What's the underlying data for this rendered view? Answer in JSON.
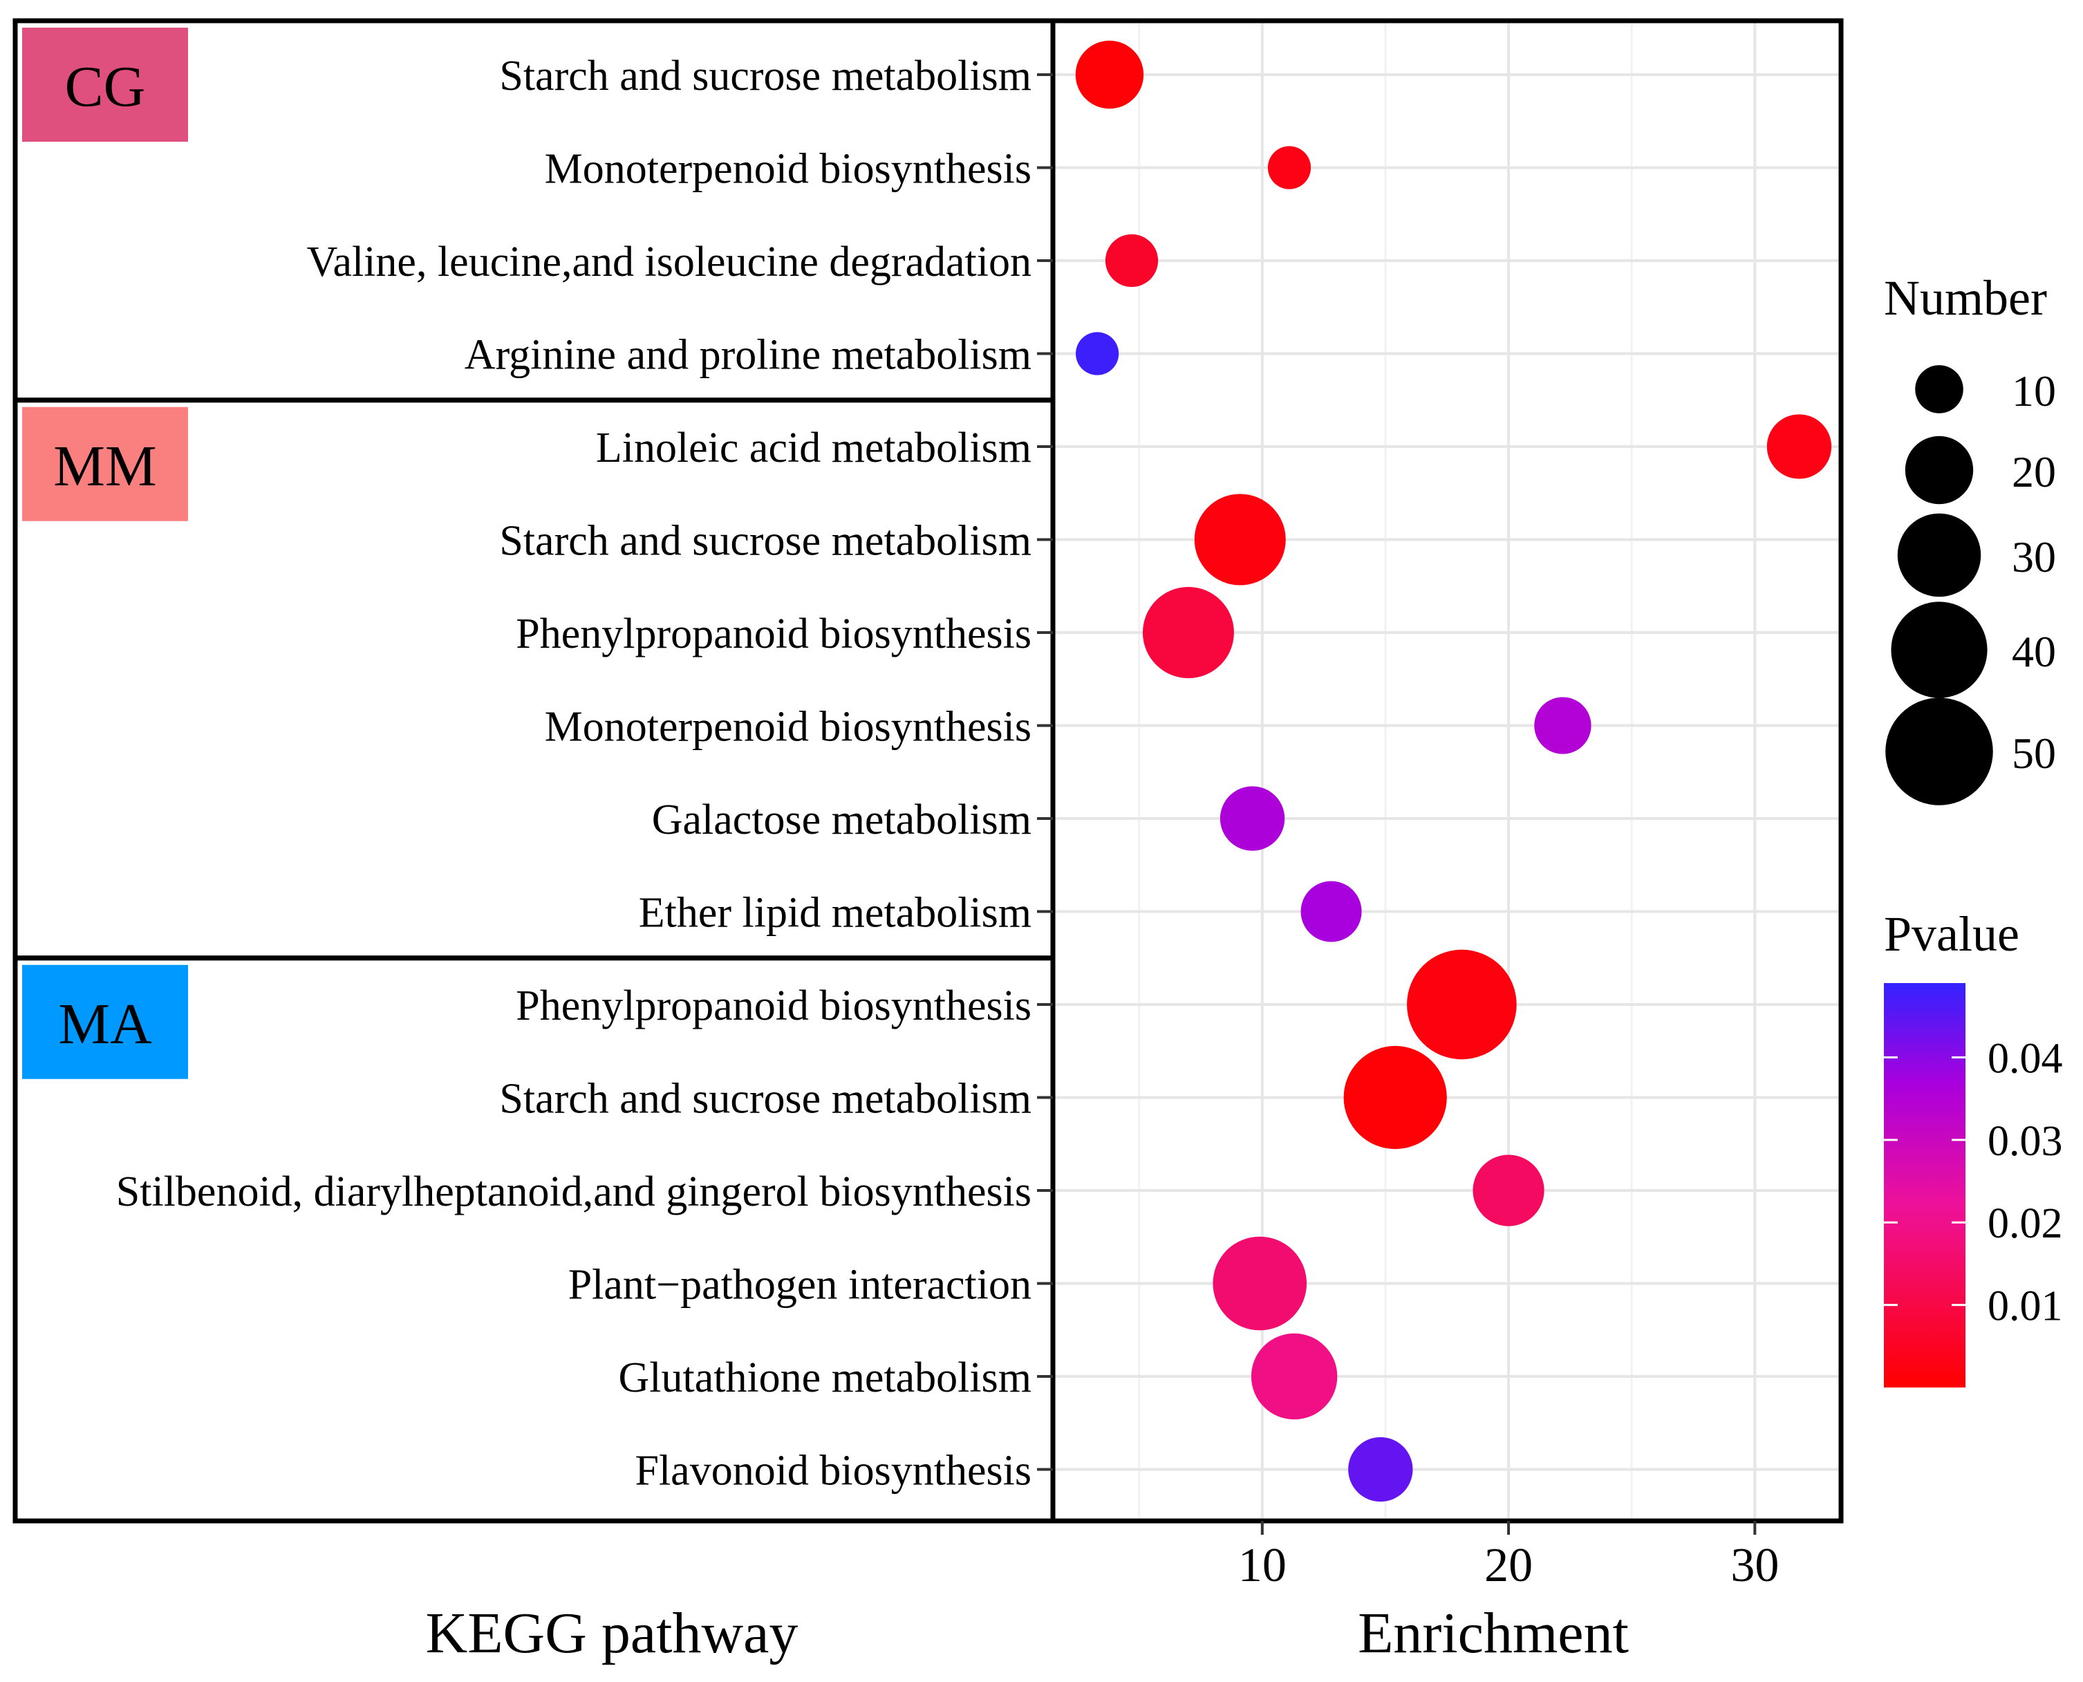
{
  "chart_data": {
    "type": "scatter",
    "subtype": "bubble",
    "xlabel": "Enrichment",
    "ylabel": "KEGG pathway",
    "xlim": [
      1.5,
      33.5
    ],
    "x_ticks": [
      10,
      20,
      30
    ],
    "x_tick_labels": [
      "10",
      "20",
      "30"
    ],
    "grid": true,
    "groups": [
      {
        "label": "CG",
        "color": "#e0507f",
        "points": [
          {
            "pathway": "Starch and sucrose metabolism",
            "enrichment": 3.8,
            "number": 20,
            "pvalue": 0.001
          },
          {
            "pathway": "Monoterpenoid biosynthesis",
            "enrichment": 11.1,
            "number": 8,
            "pvalue": 0.003
          },
          {
            "pathway": "Valine, leucine,and isoleucine degradation",
            "enrichment": 4.7,
            "number": 12,
            "pvalue": 0.006
          },
          {
            "pathway": "Arginine and proline metabolism",
            "enrichment": 3.3,
            "number": 8,
            "pvalue": 0.048
          }
        ]
      },
      {
        "label": "MM",
        "color": "#fa8080",
        "points": [
          {
            "pathway": "Linoleic acid metabolism",
            "enrichment": 31.8,
            "number": 18,
            "pvalue": 0.003
          },
          {
            "pathway": "Starch and sucrose metabolism",
            "enrichment": 9.1,
            "number": 36,
            "pvalue": 0.002
          },
          {
            "pathway": "Phenylpropanoid biosynthesis",
            "enrichment": 7.0,
            "number": 36,
            "pvalue": 0.009
          },
          {
            "pathway": "Monoterpenoid biosynthesis",
            "enrichment": 22.2,
            "number": 14,
            "pvalue": 0.035
          },
          {
            "pathway": "Galactose metabolism",
            "enrichment": 9.6,
            "number": 18,
            "pvalue": 0.036
          },
          {
            "pathway": "Ether lipid metabolism",
            "enrichment": 12.8,
            "number": 16,
            "pvalue": 0.037
          }
        ]
      },
      {
        "label": "MA",
        "color": "#0099ff",
        "points": [
          {
            "pathway": "Phenylpropanoid biosynthesis",
            "enrichment": 18.1,
            "number": 52,
            "pvalue": 0.002
          },
          {
            "pathway": "Starch and sucrose metabolism",
            "enrichment": 15.4,
            "number": 46,
            "pvalue": 0.001
          },
          {
            "pathway": "Stilbenoid, diarylheptanoid,and gingerol biosynthesis",
            "enrichment": 20.0,
            "number": 22,
            "pvalue": 0.014
          },
          {
            "pathway": "Plant−pathogen interaction",
            "enrichment": 9.9,
            "number": 38,
            "pvalue": 0.016
          },
          {
            "pathway": "Glutathione metabolism",
            "enrichment": 11.3,
            "number": 32,
            "pvalue": 0.019
          },
          {
            "pathway": "Flavonoid biosynthesis",
            "enrichment": 14.8,
            "number": 18,
            "pvalue": 0.044
          }
        ]
      }
    ],
    "legend_size": {
      "title": "Number",
      "values": [
        10,
        20,
        30,
        40,
        50
      ],
      "labels": [
        "10",
        "20",
        "30",
        "40",
        "50"
      ]
    },
    "legend_color": {
      "title": "Pvalue",
      "range": [
        0.0,
        0.049
      ],
      "ticks": [
        0.01,
        0.02,
        0.03,
        0.04
      ],
      "tick_labels": [
        "0.01",
        "0.02",
        "0.03",
        "0.04"
      ],
      "low_color": "#ff0000",
      "high_color": "#0000ff"
    },
    "point_size_min": 10,
    "point_size_max": 52,
    "legend_color_min": "#ff0000",
    "legend_color_max": "#0000ff"
  }
}
